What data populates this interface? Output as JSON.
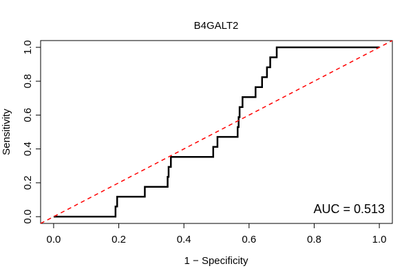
{
  "chart_data": {
    "type": "line",
    "title": "B4GALT2",
    "xlabel": "1 − Specificity",
    "ylabel": "Sensitivity",
    "xlim": [
      -0.04,
      1.04
    ],
    "ylim": [
      -0.04,
      1.04
    ],
    "xticks": [
      0.0,
      0.2,
      0.4,
      0.6,
      0.8,
      1.0
    ],
    "xtick_labels": [
      "0.0",
      "0.2",
      "0.4",
      "0.6",
      "0.8",
      "1.0"
    ],
    "yticks": [
      0.0,
      0.2,
      0.4,
      0.6,
      0.8,
      1.0
    ],
    "ytick_labels": [
      "0.0",
      "0.2",
      "0.4",
      "0.6",
      "0.8",
      "1.0"
    ],
    "grid": false,
    "annotation": "AUC = 0.513",
    "series": [
      {
        "color": "#000000",
        "points": [
          [
            0.0,
            0.0
          ],
          [
            0.19,
            0.0
          ],
          [
            0.19,
            0.06
          ],
          [
            0.195,
            0.06
          ],
          [
            0.195,
            0.118
          ],
          [
            0.28,
            0.118
          ],
          [
            0.28,
            0.176
          ],
          [
            0.35,
            0.176
          ],
          [
            0.35,
            0.235
          ],
          [
            0.353,
            0.235
          ],
          [
            0.353,
            0.294
          ],
          [
            0.36,
            0.294
          ],
          [
            0.36,
            0.353
          ],
          [
            0.49,
            0.353
          ],
          [
            0.49,
            0.412
          ],
          [
            0.503,
            0.412
          ],
          [
            0.503,
            0.471
          ],
          [
            0.565,
            0.471
          ],
          [
            0.565,
            0.529
          ],
          [
            0.568,
            0.529
          ],
          [
            0.568,
            0.588
          ],
          [
            0.571,
            0.588
          ],
          [
            0.571,
            0.647
          ],
          [
            0.58,
            0.647
          ],
          [
            0.58,
            0.706
          ],
          [
            0.62,
            0.706
          ],
          [
            0.62,
            0.765
          ],
          [
            0.64,
            0.765
          ],
          [
            0.64,
            0.824
          ],
          [
            0.655,
            0.824
          ],
          [
            0.655,
            0.882
          ],
          [
            0.665,
            0.882
          ],
          [
            0.665,
            0.941
          ],
          [
            0.685,
            0.941
          ],
          [
            0.685,
            1.0
          ],
          [
            1.0,
            1.0
          ]
        ]
      },
      {
        "color": "#ff0000",
        "dashed": true,
        "points": [
          [
            -0.04,
            -0.04
          ],
          [
            1.04,
            1.04
          ]
        ]
      }
    ]
  }
}
